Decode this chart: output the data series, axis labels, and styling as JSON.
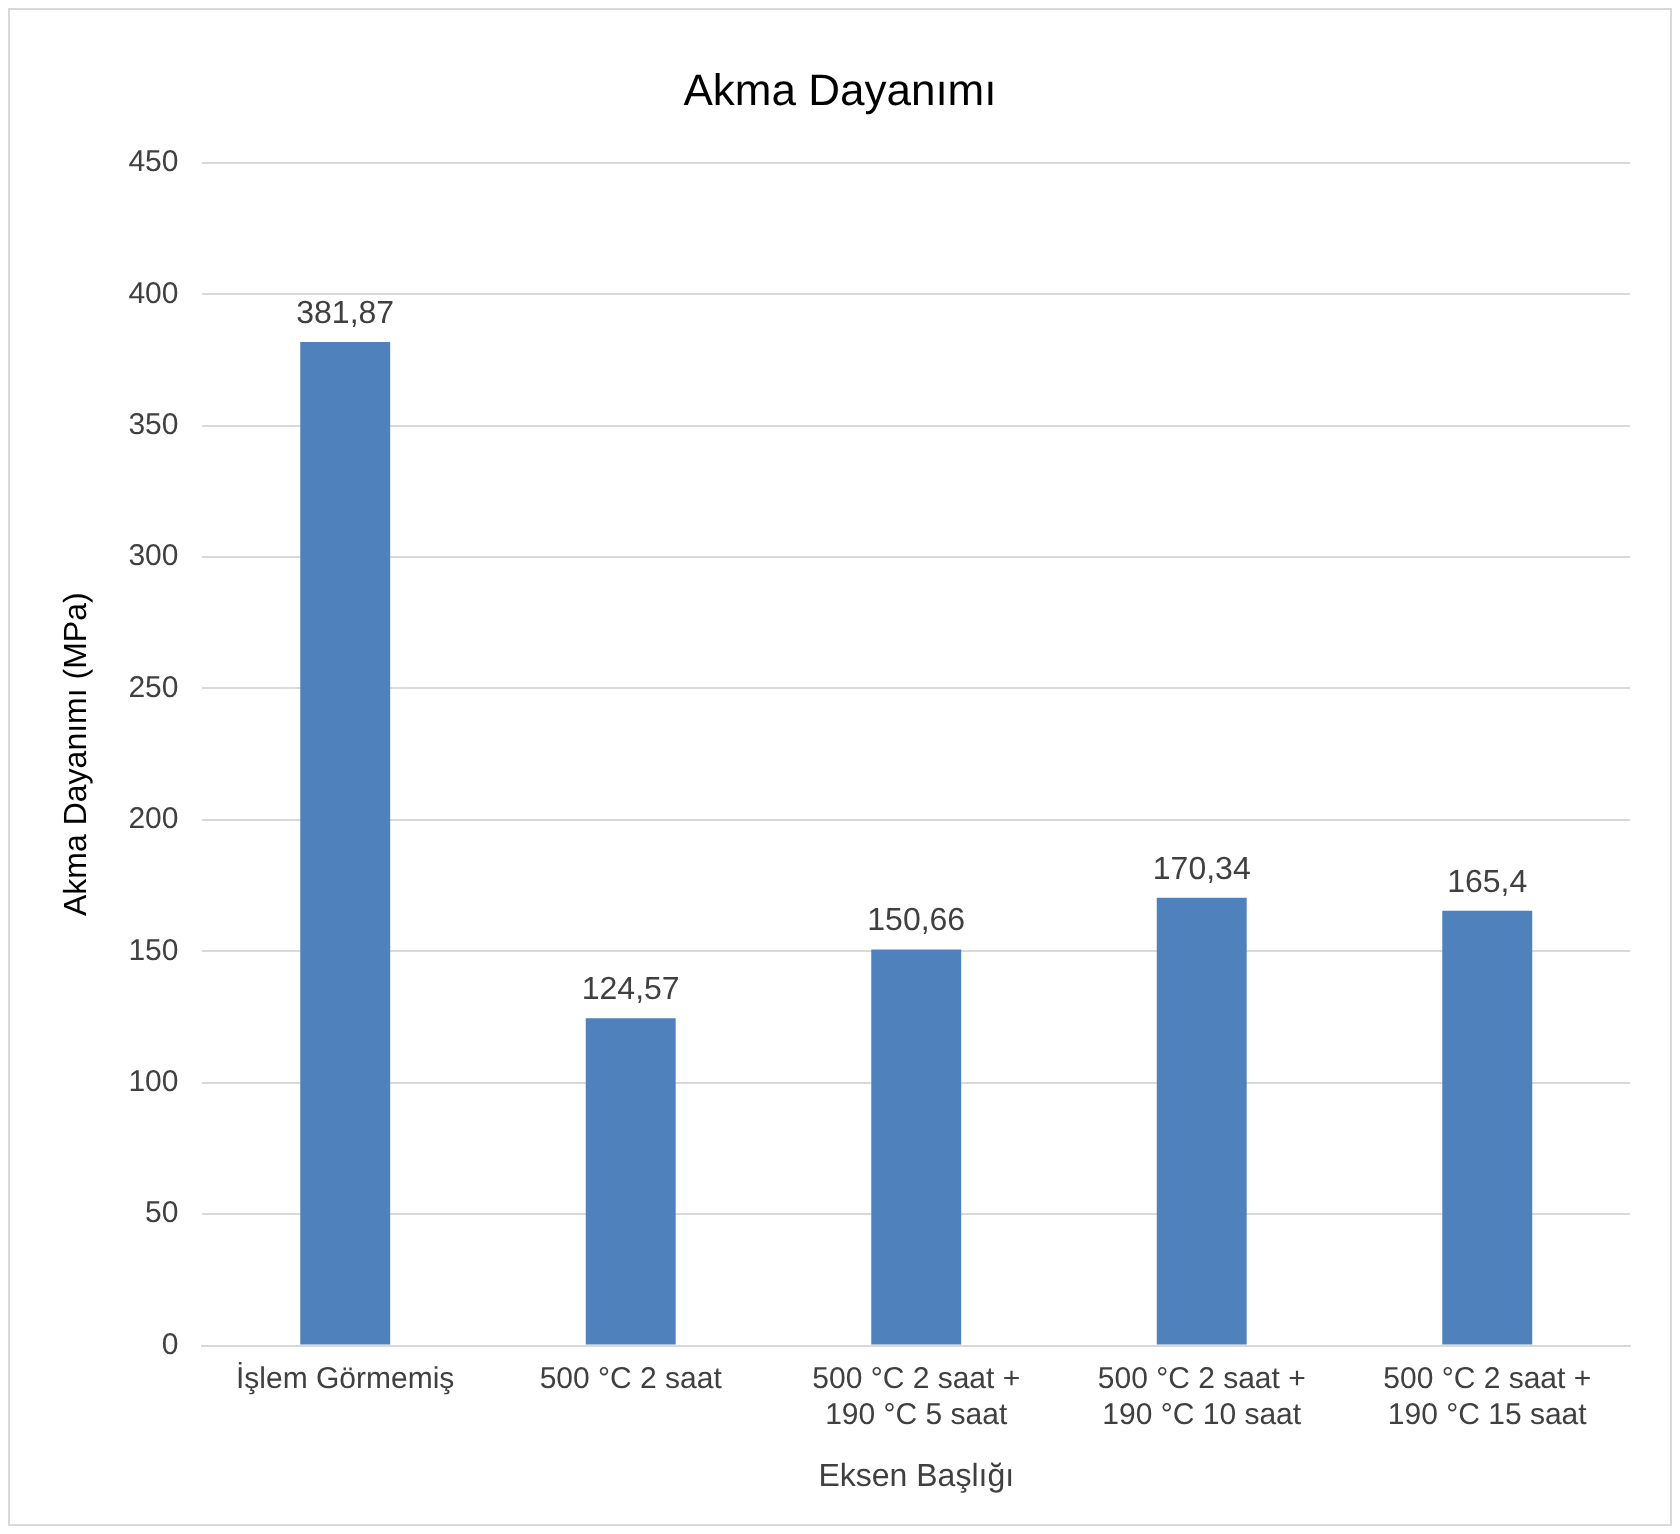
{
  "chart_data": {
    "type": "bar",
    "title": "Akma Dayanımı",
    "xlabel": "Eksen Başlığı",
    "ylabel": "Akma Dayanımı (MPa)",
    "categories": [
      "İşlem Görmemiş",
      "500 °C 2 saat",
      "500 °C 2 saat +\n190 °C 5 saat",
      "500 °C 2 saat +\n190 °C 10 saat",
      "500 °C 2 saat +\n190 °C 15 saat"
    ],
    "values": [
      381.87,
      124.57,
      150.66,
      170.34,
      165.4
    ],
    "value_labels": [
      "381,87",
      "124,57",
      "150,66",
      "170,34",
      "165,4"
    ],
    "color": "#4f81bd",
    "ylim": [
      0,
      450
    ],
    "yticks": [
      0,
      50,
      100,
      150,
      200,
      250,
      300,
      350,
      400,
      450
    ],
    "grid": "y",
    "legend": false
  }
}
